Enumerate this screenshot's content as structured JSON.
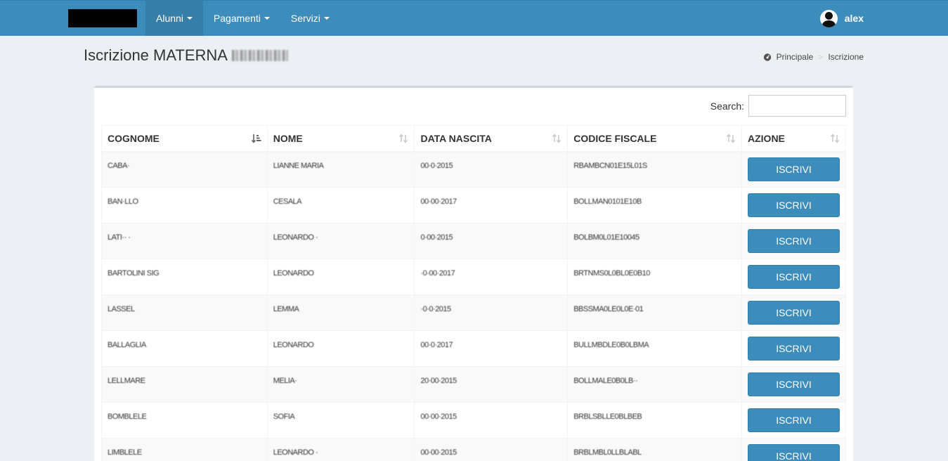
{
  "navbar": {
    "menu": [
      {
        "label": "Alunni",
        "active": true
      },
      {
        "label": "Pagamenti",
        "active": false
      },
      {
        "label": "Servizi",
        "active": false
      }
    ],
    "user_name": "alex"
  },
  "header": {
    "title": "Iscrizione MATERNA",
    "breadcrumb": [
      "Principale",
      "Iscrizione"
    ]
  },
  "search": {
    "label": "Search:",
    "value": ""
  },
  "table": {
    "columns": [
      "COGNOME",
      "NOME",
      "DATA NASCITA",
      "CODICE FISCALE",
      "AZIONE"
    ],
    "rows": [
      {
        "cognome": "CABA·",
        "nome": "LIANNE MARIA",
        "data": "00·0·2015",
        "cf": "RBAMBCN01E15L01S",
        "action": "ISCRIVI"
      },
      {
        "cognome": "BAN·LLO",
        "nome": "CESALA",
        "data": "00·00·2017",
        "cf": "BOLLMAN0101E10B",
        "action": "ISCRIVI"
      },
      {
        "cognome": "LATI·· ·",
        "nome": "LEONARDO ·",
        "data": "0·00·2015",
        "cf": "BOLBM0L01E10045",
        "action": "ISCRIVI"
      },
      {
        "cognome": "BARTOLINI SIG",
        "nome": "LEONARDO",
        "data": "·0·00·2017",
        "cf": "BRTNMS0L0BL0E0B10",
        "action": "ISCRIVI"
      },
      {
        "cognome": "LASSEL",
        "nome": "LEMMA",
        "data": "·0·0·2015",
        "cf": "BBSSMA0LE0L0E·01",
        "action": "ISCRIVI"
      },
      {
        "cognome": "BALLAGLIA",
        "nome": "LEONARDO",
        "data": "00·0·2017",
        "cf": "BULLMBDLE0B0LBMA",
        "action": "ISCRIVI"
      },
      {
        "cognome": "LELLMARE",
        "nome": "MELIA·",
        "data": "20·00·2015",
        "cf": "BOLLMALE0B0LB··",
        "action": "ISCRIVI"
      },
      {
        "cognome": "BOMBLELE",
        "nome": "SOFIA",
        "data": "00·00·2015",
        "cf": "BRBLSBLLE0BLBEB",
        "action": "ISCRIVI"
      },
      {
        "cognome": "LIMBLELE",
        "nome": "LEONARDO ·",
        "data": "00·00·2015",
        "cf": "BRBLMBL0LLBLABL",
        "action": "ISCRIVI"
      }
    ]
  }
}
